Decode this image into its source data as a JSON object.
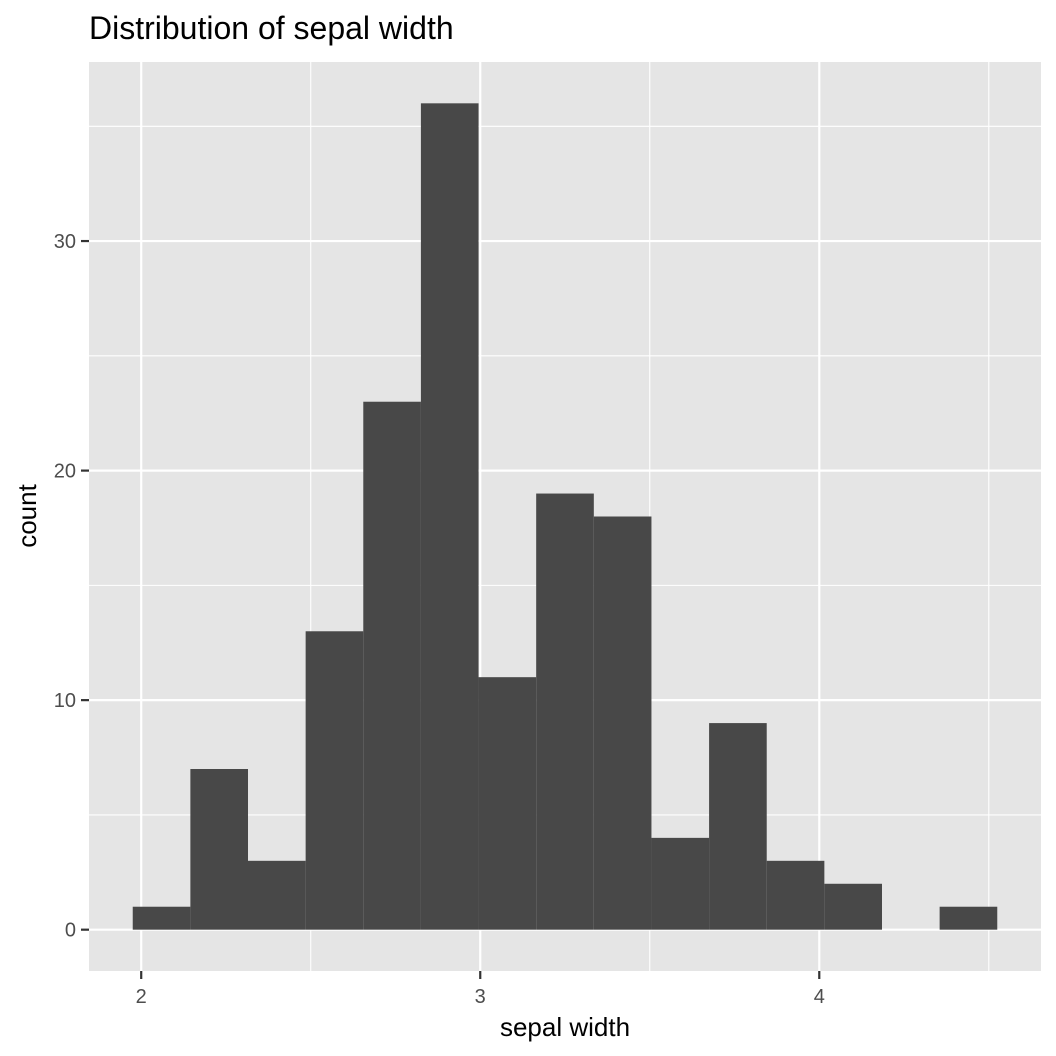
{
  "chart_data": {
    "type": "bar",
    "subtype": "histogram",
    "title": "Distribution of sepal width",
    "xlabel": "sepal width",
    "ylabel": "count",
    "bin_width": 0.17,
    "bins": [
      {
        "x_start": 1.975,
        "x_end": 2.145,
        "count": 1
      },
      {
        "x_start": 2.145,
        "x_end": 2.315,
        "count": 7
      },
      {
        "x_start": 2.315,
        "x_end": 2.485,
        "count": 3
      },
      {
        "x_start": 2.485,
        "x_end": 2.655,
        "count": 13
      },
      {
        "x_start": 2.655,
        "x_end": 2.825,
        "count": 23
      },
      {
        "x_start": 2.825,
        "x_end": 2.995,
        "count": 36
      },
      {
        "x_start": 2.995,
        "x_end": 3.165,
        "count": 11
      },
      {
        "x_start": 3.165,
        "x_end": 3.335,
        "count": 19
      },
      {
        "x_start": 3.335,
        "x_end": 3.505,
        "count": 18
      },
      {
        "x_start": 3.505,
        "x_end": 3.675,
        "count": 4
      },
      {
        "x_start": 3.675,
        "x_end": 3.845,
        "count": 9
      },
      {
        "x_start": 3.845,
        "x_end": 4.015,
        "count": 3
      },
      {
        "x_start": 4.015,
        "x_end": 4.185,
        "count": 2
      },
      {
        "x_start": 4.185,
        "x_end": 4.355,
        "count": 0
      },
      {
        "x_start": 4.355,
        "x_end": 4.525,
        "count": 1
      }
    ],
    "xlim": [
      1.846,
      4.654
    ],
    "ylim": [
      -1.8,
      37.8
    ],
    "x_ticks": [
      2,
      3,
      4
    ],
    "x_tick_labels": [
      "2",
      "3",
      "4"
    ],
    "y_ticks": [
      0,
      10,
      20,
      30
    ],
    "y_tick_labels": [
      "0",
      "10",
      "20",
      "30"
    ],
    "x_minor_grid": [
      2.5,
      3.5,
      4.5
    ],
    "y_minor_grid": [
      5,
      15,
      25,
      35
    ],
    "grid": true,
    "legend": "none",
    "colors": {
      "bar_fill": "#484848",
      "panel_background": "#e5e5e5",
      "grid_line": "#ffffff",
      "tick_text": "#4d4d4d",
      "axis_text": "#000000"
    }
  }
}
